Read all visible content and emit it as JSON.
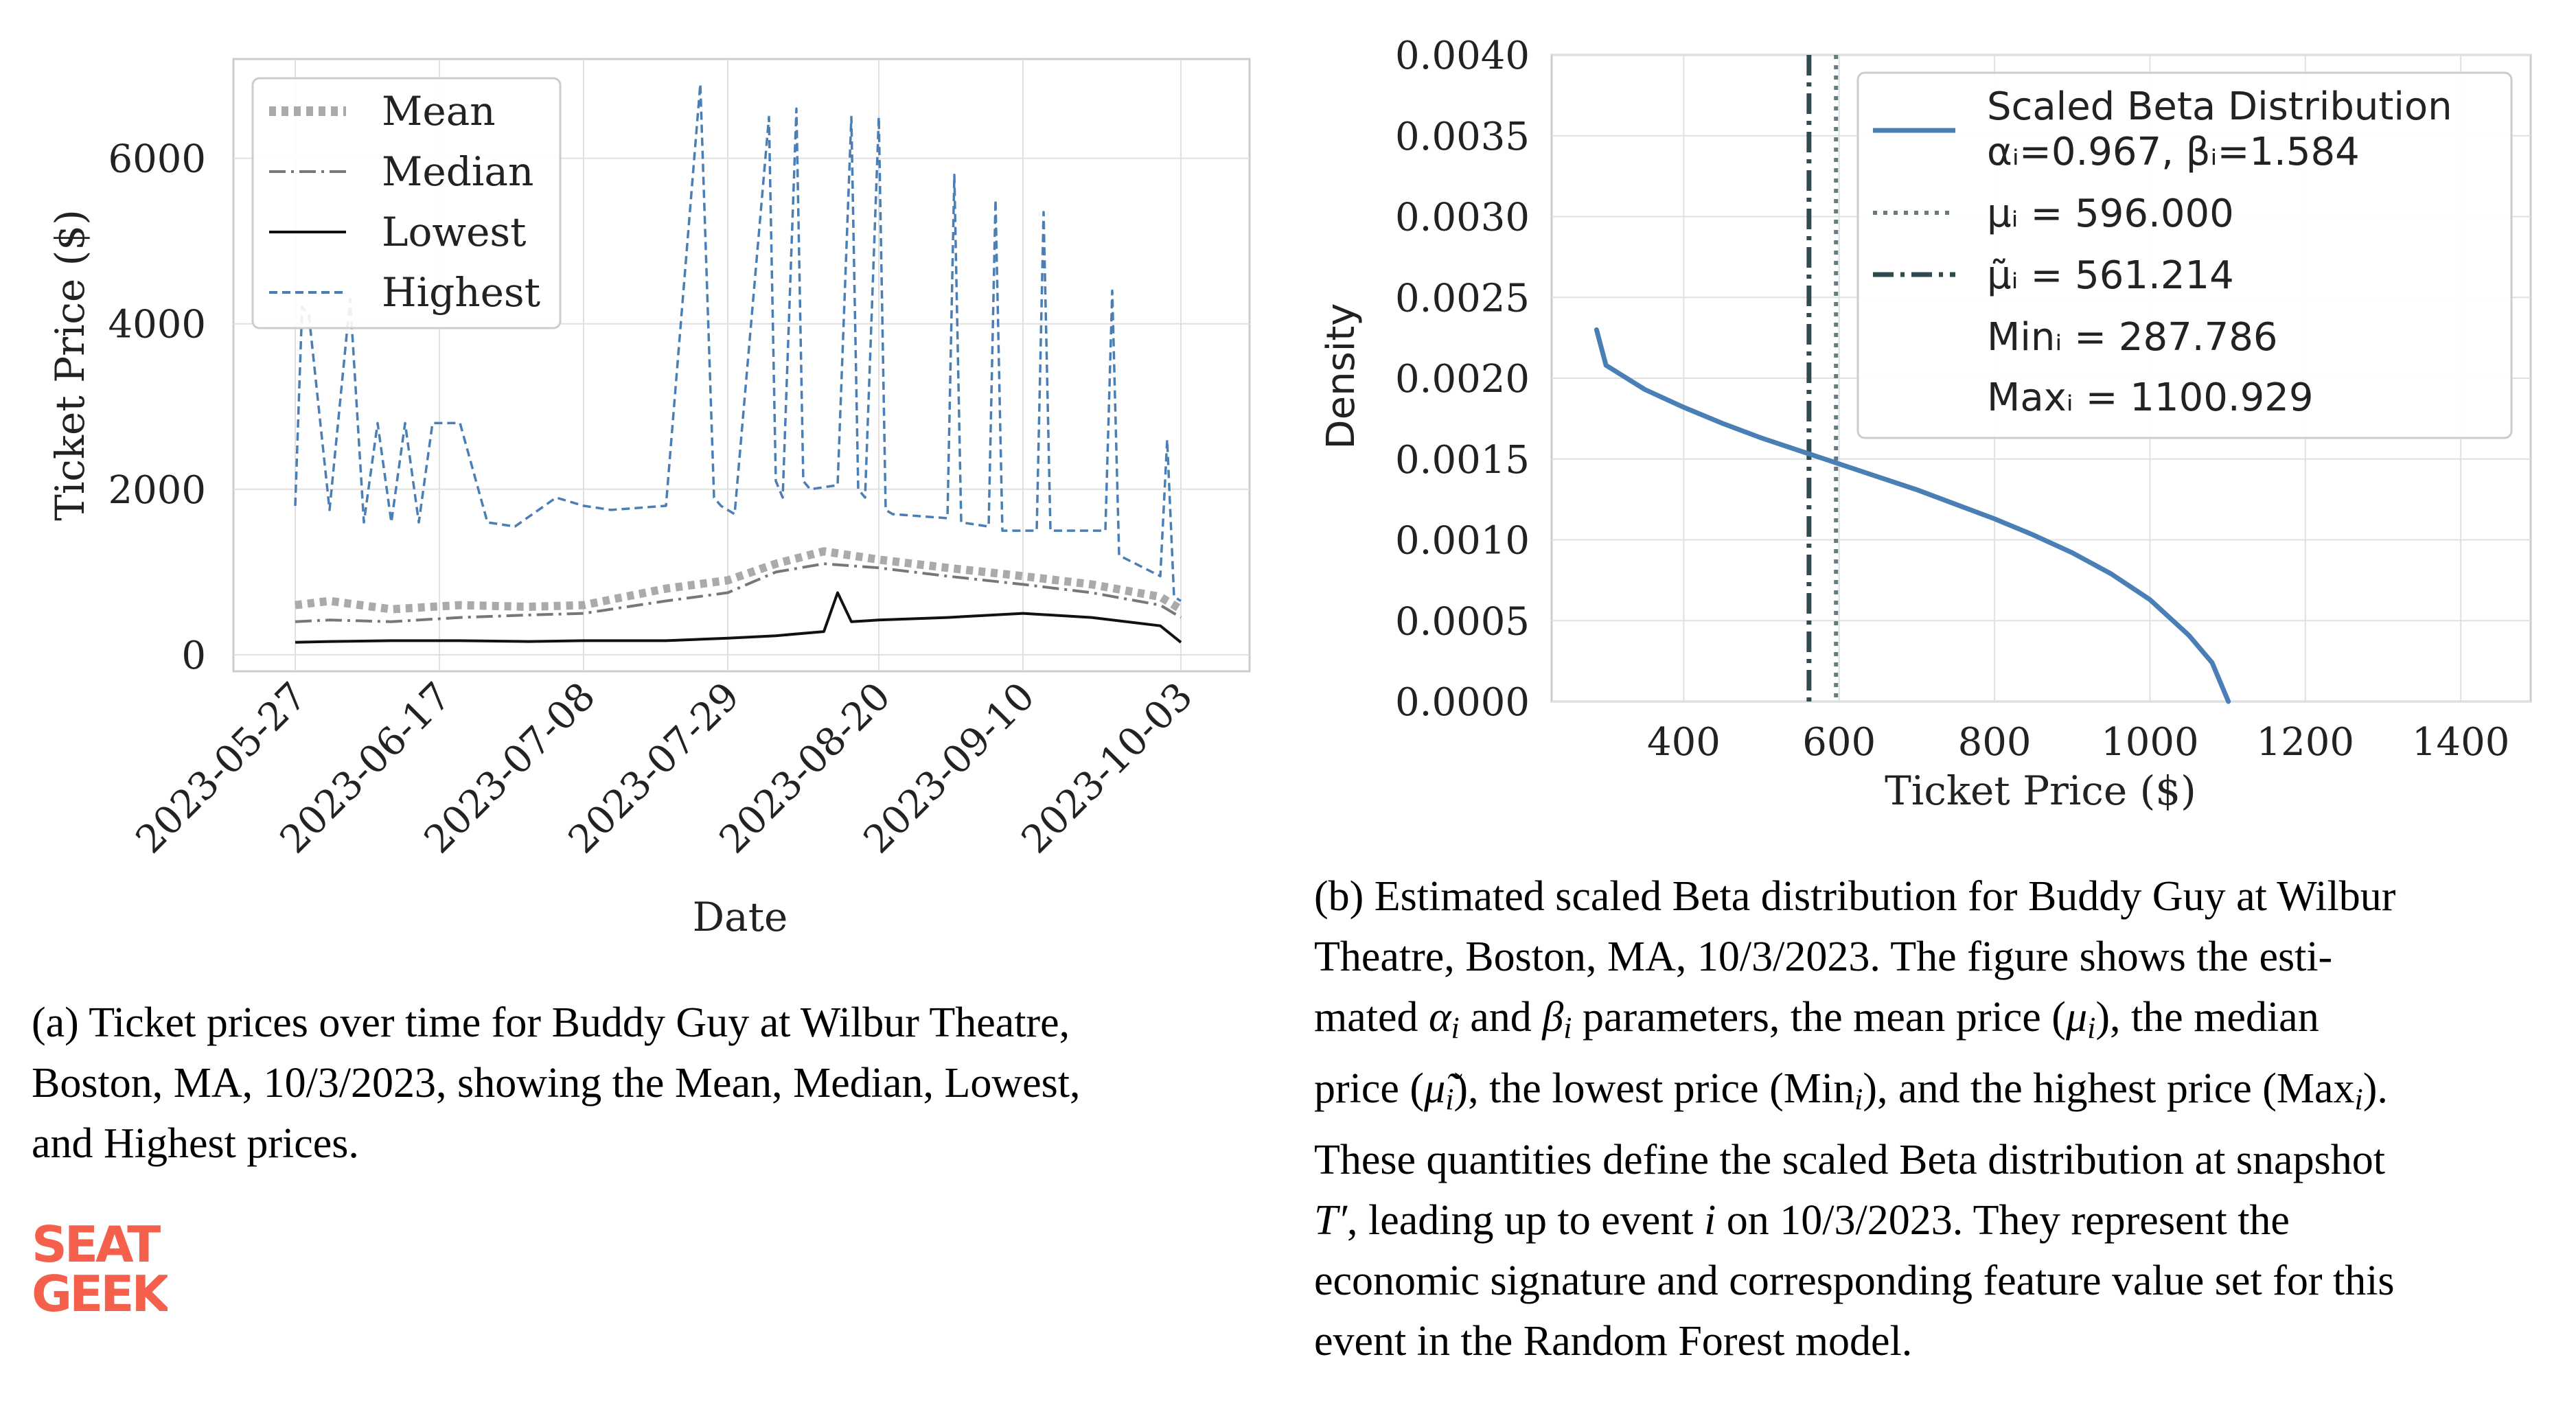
{
  "left_chart": {
    "ylabel": "Ticket Price ($)",
    "xlabel": "Date",
    "yticks": [
      "0",
      "2000",
      "4000",
      "6000"
    ],
    "xticks": [
      "2023-05-27",
      "2023-06-17",
      "2023-07-08",
      "2023-07-29",
      "2023-08-20",
      "2023-09-10",
      "2023-10-03"
    ],
    "legend": [
      "Mean",
      "Median",
      "Lowest",
      "Highest"
    ]
  },
  "right_chart": {
    "ylabel": "Density",
    "xlabel": "Ticket Price ($)",
    "yticks": [
      "0.0000",
      "0.0005",
      "0.0010",
      "0.0015",
      "0.0020",
      "0.0025",
      "0.0030",
      "0.0035",
      "0.0040"
    ],
    "xticks": [
      "400",
      "600",
      "800",
      "1000",
      "1200",
      "1400"
    ],
    "legend": {
      "line1": "Scaled Beta Distribution",
      "line2": "αᵢ=0.967, βᵢ=1.584",
      "mu": "μᵢ = 596.000",
      "median": "μ̃ᵢ = 561.214",
      "min": "Minᵢ = 287.786",
      "max": "Maxᵢ = 1100.929"
    }
  },
  "caption_a": {
    "l1": "(a) Ticket prices over time for Buddy Guy at Wilbur Theatre,",
    "l2": "Boston, MA, 10/3/2023, showing the Mean, Median, Lowest,",
    "l3": "and Highest prices."
  },
  "caption_b": {
    "l1": "(b) Estimated scaled Beta distribution for Buddy Guy at Wilbur",
    "l2": "Theatre, Boston, MA, 10/3/2023.  The figure shows the esti-",
    "l3a": "mated ",
    "l3b": "α",
    "l3c": "i",
    "l3d": " and ",
    "l3e": "β",
    "l3f": "i",
    "l3g": " parameters, the mean price (",
    "l3h": "μ",
    "l3i": "i",
    "l3j": "), the median",
    "l4a": "price (",
    "l4b": "μ̃",
    "l4c": "i",
    "l4d": "), the lowest price (Min",
    "l4e": "i",
    "l4f": "), and the highest price (Max",
    "l4g": "i",
    "l4h": ").",
    "l5": "These quantities define the scaled Beta distribution at snapshot",
    "l6a": "T′",
    "l6b": ", leading up to event ",
    "l6c": "i",
    "l6d": " on 10/3/2023.  They represent the",
    "l7": "economic signature and corresponding feature value set for this",
    "l8": "event in the Random Forest model."
  },
  "logo": {
    "line1": "SEAT",
    "line2": "GEEK",
    "color": "#f4604b"
  },
  "colors": {
    "highest": "#4a7fb5",
    "lowest": "#111111",
    "mean": "#aaaaaa",
    "median": "#777777",
    "beta": "#4a7fb5",
    "vline": "#2f4a50"
  },
  "chart_data": [
    {
      "type": "line",
      "xlabel": "Date",
      "ylabel": "Ticket Price ($)",
      "ylim": [
        -200,
        7200
      ],
      "x_range": [
        "2023-05-27",
        "2023-10-03"
      ],
      "grid": true,
      "legend_position": "top-left",
      "series": [
        {
          "name": "Mean",
          "style": "dotted",
          "x": [
            "2023-05-27",
            "2023-06-01",
            "2023-06-10",
            "2023-06-20",
            "2023-06-30",
            "2023-07-08",
            "2023-07-20",
            "2023-07-29",
            "2023-08-05",
            "2023-08-12",
            "2023-08-20",
            "2023-08-30",
            "2023-09-10",
            "2023-09-20",
            "2023-09-30",
            "2023-10-03"
          ],
          "values": [
            600,
            650,
            550,
            600,
            580,
            600,
            800,
            900,
            1100,
            1250,
            1150,
            1050,
            950,
            850,
            700,
            550
          ]
        },
        {
          "name": "Median",
          "style": "dashdot",
          "x": [
            "2023-05-27",
            "2023-06-01",
            "2023-06-10",
            "2023-06-20",
            "2023-06-30",
            "2023-07-08",
            "2023-07-20",
            "2023-07-29",
            "2023-08-05",
            "2023-08-12",
            "2023-08-20",
            "2023-08-30",
            "2023-09-10",
            "2023-09-20",
            "2023-09-30",
            "2023-10-03"
          ],
          "values": [
            400,
            420,
            400,
            450,
            480,
            500,
            650,
            750,
            1000,
            1100,
            1050,
            950,
            850,
            750,
            600,
            450
          ]
        },
        {
          "name": "Lowest",
          "style": "solid",
          "x": [
            "2023-05-27",
            "2023-06-01",
            "2023-06-10",
            "2023-06-20",
            "2023-06-30",
            "2023-07-08",
            "2023-07-20",
            "2023-07-29",
            "2023-08-05",
            "2023-08-12",
            "2023-08-14",
            "2023-08-16",
            "2023-08-20",
            "2023-08-30",
            "2023-09-10",
            "2023-09-20",
            "2023-09-30",
            "2023-10-03"
          ],
          "values": [
            150,
            160,
            170,
            170,
            160,
            170,
            170,
            200,
            230,
            280,
            750,
            400,
            420,
            450,
            500,
            450,
            350,
            150
          ]
        },
        {
          "name": "Highest",
          "style": "dashed",
          "x": [
            "2023-05-27",
            "2023-05-28",
            "2023-05-29",
            "2023-06-01",
            "2023-06-04",
            "2023-06-06",
            "2023-06-08",
            "2023-06-10",
            "2023-06-12",
            "2023-06-14",
            "2023-06-16",
            "2023-06-20",
            "2023-06-24",
            "2023-06-28",
            "2023-07-04",
            "2023-07-08",
            "2023-07-12",
            "2023-07-20",
            "2023-07-25",
            "2023-07-27",
            "2023-07-28",
            "2023-07-30",
            "2023-08-04",
            "2023-08-05",
            "2023-08-06",
            "2023-08-08",
            "2023-08-09",
            "2023-08-10",
            "2023-08-14",
            "2023-08-16",
            "2023-08-17",
            "2023-08-18",
            "2023-08-20",
            "2023-08-21",
            "2023-08-22",
            "2023-08-30",
            "2023-08-31",
            "2023-09-01",
            "2023-09-05",
            "2023-09-06",
            "2023-09-07",
            "2023-09-12",
            "2023-09-13",
            "2023-09-14",
            "2023-09-22",
            "2023-09-23",
            "2023-09-24",
            "2023-09-30",
            "2023-10-01",
            "2023-10-02",
            "2023-10-03"
          ],
          "values": [
            1800,
            4200,
            4100,
            1750,
            4300,
            1600,
            2800,
            1600,
            2800,
            1600,
            2800,
            2800,
            1600,
            1550,
            1900,
            1800,
            1750,
            1800,
            6900,
            1900,
            1800,
            1700,
            6500,
            2100,
            1900,
            6600,
            2100,
            2000,
            2050,
            6500,
            2000,
            1900,
            6500,
            1750,
            1700,
            1650,
            5800,
            1600,
            1550,
            5500,
            1500,
            1500,
            5350,
            1500,
            1500,
            4400,
            1200,
            950,
            2600,
            700,
            650
          ]
        }
      ]
    },
    {
      "type": "line",
      "xlabel": "Ticket Price ($)",
      "ylabel": "Density",
      "xlim": [
        230,
        1490
      ],
      "ylim": [
        0,
        0.004
      ],
      "grid": true,
      "legend_position": "top-right",
      "series": [
        {
          "name": "Scaled Beta Distribution",
          "x": [
            287.786,
            300,
            350,
            400,
            450,
            500,
            550,
            600,
            650,
            700,
            750,
            800,
            850,
            900,
            950,
            1000,
            1050,
            1080,
            1100.929
          ],
          "values": [
            0.0023,
            0.00208,
            0.00193,
            0.00182,
            0.00172,
            0.00163,
            0.00155,
            0.00147,
            0.00139,
            0.00131,
            0.00122,
            0.00113,
            0.00103,
            0.00092,
            0.00079,
            0.00063,
            0.00041,
            0.00024,
            0.0
          ]
        }
      ],
      "vlines": [
        {
          "name": "μᵢ = 596.000",
          "x": 596.0,
          "style": "dotted"
        },
        {
          "name": "μ̃ᵢ = 561.214",
          "x": 561.214,
          "style": "dashdot"
        }
      ]
    }
  ]
}
